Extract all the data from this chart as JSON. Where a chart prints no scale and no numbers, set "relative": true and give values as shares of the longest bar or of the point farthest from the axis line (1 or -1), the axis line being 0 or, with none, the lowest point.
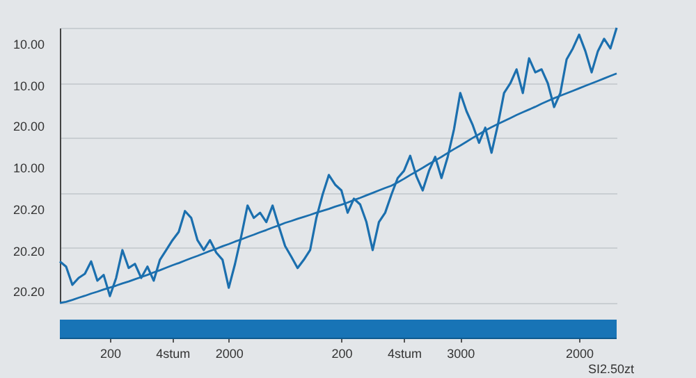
{
  "chart_data": {
    "type": "line",
    "relative": true,
    "categories": [
      null,
      null,
      null,
      null,
      null,
      null,
      null,
      null,
      "200",
      null,
      null,
      null,
      null,
      null,
      null,
      null,
      null,
      null,
      "4stum",
      null,
      null,
      null,
      null,
      null,
      null,
      null,
      null,
      "2000",
      null,
      null,
      null,
      null,
      null,
      null,
      null,
      null,
      null,
      null,
      null,
      null,
      null,
      null,
      null,
      null,
      null,
      "200",
      null,
      null,
      null,
      null,
      null,
      null,
      null,
      null,
      null,
      "4stum",
      null,
      null,
      null,
      null,
      null,
      null,
      null,
      null,
      "3000",
      null,
      null,
      null,
      null,
      null,
      null,
      null,
      null,
      null,
      null,
      null,
      null,
      null,
      null,
      null,
      null,
      null,
      null,
      "2000",
      null,
      null,
      null,
      null,
      null,
      null
    ],
    "xlabel": "SI2.50zt",
    "grid": "y",
    "annotations": [
      "10.00",
      "10.00",
      "20.00",
      "10.00",
      "20.20",
      "20.20",
      "20.20"
    ],
    "series": [
      {
        "color": "#1b6fae",
        "values": [
          0.151,
          0.132,
          0.066,
          0.091,
          0.106,
          0.151,
          0.081,
          0.102,
          0.025,
          0.091,
          0.192,
          0.127,
          0.142,
          0.091,
          0.132,
          0.081,
          0.157,
          0.192,
          0.228,
          0.258,
          0.334,
          0.309,
          0.228,
          0.192,
          0.228,
          0.183,
          0.157,
          0.055,
          0.142,
          0.243,
          0.354,
          0.309,
          0.328,
          0.294,
          0.354,
          0.279,
          0.207,
          0.168,
          0.127,
          0.157,
          0.192,
          0.309,
          0.394,
          0.465,
          0.43,
          0.409,
          0.328,
          0.379,
          0.358,
          0.294,
          0.192,
          0.294,
          0.328,
          0.394,
          0.454,
          0.48,
          0.535,
          0.46,
          0.409,
          0.48,
          0.531,
          0.454,
          0.531,
          0.631,
          0.763,
          0.697,
          0.646,
          0.582,
          0.637,
          0.546,
          0.646,
          0.763,
          0.798,
          0.849,
          0.763,
          0.889,
          0.838,
          0.849,
          0.798,
          0.712,
          0.763,
          0.885,
          0.925,
          0.975,
          0.915,
          0.838,
          0.915,
          0.96,
          0.925,
          1
        ]
      },
      {
        "color": "#1b6fae",
        "values": [
          0,
          0.004,
          0.011,
          0.019,
          0.026,
          0.034,
          0.041,
          0.049,
          0.056,
          0.063,
          0.071,
          0.078,
          0.086,
          0.094,
          0.102,
          0.111,
          0.119,
          0.128,
          0.137,
          0.145,
          0.154,
          0.163,
          0.171,
          0.18,
          0.189,
          0.197,
          0.206,
          0.214,
          0.223,
          0.231,
          0.24,
          0.248,
          0.257,
          0.265,
          0.274,
          0.282,
          0.291,
          0.298,
          0.306,
          0.313,
          0.32,
          0.328,
          0.335,
          0.342,
          0.35,
          0.357,
          0.365,
          0.374,
          0.382,
          0.391,
          0.4,
          0.409,
          0.418,
          0.426,
          0.438,
          0.451,
          0.465,
          0.478,
          0.491,
          0.505,
          0.518,
          0.531,
          0.545,
          0.559,
          0.572,
          0.586,
          0.6,
          0.613,
          0.627,
          0.639,
          0.65,
          0.661,
          0.672,
          0.683,
          0.693,
          0.703,
          0.713,
          0.724,
          0.734,
          0.744,
          0.753,
          0.762,
          0.771,
          0.78,
          0.789,
          0.798,
          0.807,
          0.816,
          0.825,
          0.834
        ]
      }
    ]
  }
}
